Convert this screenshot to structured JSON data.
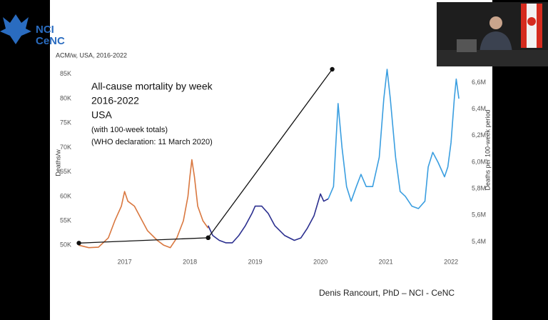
{
  "logo": {
    "lines": [
      "NCI",
      "CeNC"
    ]
  },
  "chart_data": {
    "type": "line",
    "subtitle": "ACM/w, USA, 2016-2022",
    "ylabel": "Deaths/w",
    "y2label": "Deaths per 100-week period",
    "annotations": [
      "All-cause mortality by week",
      "2016-2022",
      "USA",
      "(with 100-week totals)",
      "(WHO declaration: 11 March 2020)"
    ],
    "credit": "Denis Rancourt, PhD  –  NCI - CeNC",
    "xlim": [
      2016.25,
      2022.25
    ],
    "xticks": [
      2017,
      2018,
      2019,
      2020,
      2021,
      2022
    ],
    "ylim": [
      48000,
      86000
    ],
    "yticks": [
      {
        "value": 50000,
        "label": "50K"
      },
      {
        "value": 55000,
        "label": "55K"
      },
      {
        "value": 60000,
        "label": "60K"
      },
      {
        "value": 65000,
        "label": "65K"
      },
      {
        "value": 70000,
        "label": "70K"
      },
      {
        "value": 75000,
        "label": "75K"
      },
      {
        "value": 80000,
        "label": "80K"
      },
      {
        "value": 85000,
        "label": "85K"
      }
    ],
    "y2lim": [
      5300000,
      6700000
    ],
    "y2ticks": [
      {
        "value": 5400000,
        "label": "5,4M"
      },
      {
        "value": 5600000,
        "label": "5,6M"
      },
      {
        "value": 5800000,
        "label": "5,8M"
      },
      {
        "value": 6000000,
        "label": "6,0M"
      },
      {
        "value": 6200000,
        "label": "6,2M"
      },
      {
        "value": 6400000,
        "label": "6,4M"
      },
      {
        "value": 6600000,
        "label": "6,6M"
      }
    ],
    "series": [
      {
        "color": "#d9773f",
        "x": [
          2016.3,
          2016.45,
          2016.6,
          2016.75,
          2016.85,
          2016.95,
          2017.0,
          2017.05,
          2017.15,
          2017.25,
          2017.35,
          2017.5,
          2017.6,
          2017.7,
          2017.8,
          2017.9,
          2017.97,
          2018.0,
          2018.03,
          2018.07,
          2018.12,
          2018.2,
          2018.28
        ],
        "values": [
          50000,
          49500,
          49600,
          51500,
          55000,
          58000,
          61000,
          59000,
          58000,
          55500,
          53000,
          51000,
          50000,
          49500,
          51500,
          55000,
          60000,
          64000,
          67500,
          64000,
          58000,
          55000,
          53500
        ]
      },
      {
        "color": "#2b2f8f",
        "x": [
          2018.28,
          2018.35,
          2018.45,
          2018.55,
          2018.65,
          2018.75,
          2018.85,
          2018.95,
          2019.0,
          2019.1,
          2019.2,
          2019.3,
          2019.45,
          2019.6,
          2019.7,
          2019.8,
          2019.9,
          2020.0,
          2020.05,
          2020.12
        ],
        "values": [
          54000,
          52000,
          51000,
          50500,
          50500,
          52000,
          54000,
          56500,
          58000,
          58000,
          56500,
          54000,
          52000,
          51000,
          51500,
          53500,
          56000,
          60500,
          59000,
          59500
        ]
      },
      {
        "color": "#3a9ee0",
        "x": [
          2020.12,
          2020.2,
          2020.27,
          2020.33,
          2020.4,
          2020.47,
          2020.55,
          2020.62,
          2020.7,
          2020.8,
          2020.9,
          2020.97,
          2021.02,
          2021.07,
          2021.15,
          2021.22,
          2021.3,
          2021.4,
          2021.5,
          2021.6,
          2021.65,
          2021.72,
          2021.8,
          2021.9,
          2021.95,
          2022.0,
          2022.05,
          2022.08,
          2022.12
        ],
        "values": [
          59500,
          62000,
          79000,
          70000,
          62000,
          59000,
          62000,
          64500,
          62000,
          62000,
          68000,
          80000,
          86000,
          80000,
          68000,
          61000,
          60000,
          58000,
          57500,
          59000,
          66000,
          69000,
          67000,
          64000,
          66000,
          71000,
          80000,
          84000,
          80000
        ]
      },
      {
        "color": "#111111",
        "axis": "y2",
        "markers": true,
        "x": [
          2016.3,
          2018.28
        ],
        "values": [
          5390000,
          5430000
        ]
      },
      {
        "color": "#111111",
        "axis": "y2",
        "markers": true,
        "x": [
          2018.28,
          2020.18
        ],
        "values": [
          5430000,
          6700000
        ]
      }
    ]
  }
}
